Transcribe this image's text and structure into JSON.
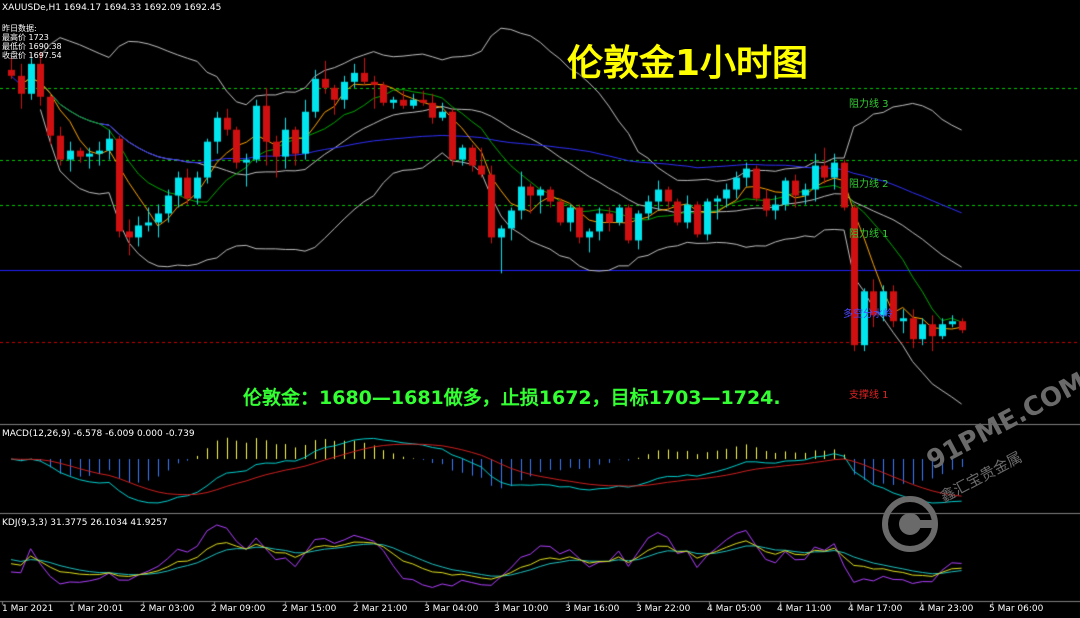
{
  "header": {
    "symbol_line": "XAUUSDe,H1  1694.17 1694.33 1692.09 1692.45",
    "prev_day_label": "昨日数据:",
    "prev_high": "最高价 1723",
    "prev_low": "最低价 1690.38",
    "prev_close": "收盘价 1697.54"
  },
  "title": "伦敦金1小时图",
  "strategy": "伦敦金：1680—1681做多，止损1672，目标1703—1724.",
  "levels": {
    "resistance3": "阻力线 3",
    "resistance2": "阻力线 2",
    "resistance1": "阻力线 1",
    "pivot": "多空分水岭",
    "support1": "支撑线 1"
  },
  "indicators": {
    "macd_label": "MACD(12,26,9) -6.578 -6.009 0.000 -0.739",
    "kdj_label": "KDJ(9,3,3) 31.3775 26.1034 41.9257"
  },
  "watermark": {
    "main": "91PME.COM",
    "sub": "鑫汇宝贵金属"
  },
  "colors": {
    "bull": "#00e5ee",
    "bear": "#d01010",
    "level_green": "#00c800",
    "level_red": "#c80000",
    "pivot_blue": "#2020ff",
    "ma_slow": "#3030ff",
    "ma_mid": "#00aa00",
    "ma_fast": "#ffa500",
    "band": "#c0c0c0"
  },
  "chart_data": {
    "type": "candlestick",
    "x_ticks": [
      "1 Mar 2021",
      "1 Mar 20:01",
      "2 Mar 03:00",
      "2 Mar 09:00",
      "2 Mar 15:00",
      "2 Mar 21:00",
      "3 Mar 04:00",
      "3 Mar 10:00",
      "3 Mar 16:00",
      "3 Mar 22:00",
      "4 Mar 05:00",
      "4 Mar 11:00",
      "4 Mar 17:00",
      "4 Mar 23:00",
      "5 Mar 06:00"
    ],
    "price_range": [
      1670,
      1740
    ],
    "horizontal_levels": {
      "resistance3": 1726,
      "resistance2": 1714,
      "resistance1": 1706.5,
      "pivot": 1695.5,
      "support1": 1683.5
    },
    "candles": [
      [
        1729,
        1731,
        1727.5,
        1728
      ],
      [
        1728,
        1730,
        1722.5,
        1725
      ],
      [
        1725,
        1731,
        1724,
        1730
      ],
      [
        1730,
        1732,
        1723,
        1724.5
      ],
      [
        1724.5,
        1725,
        1716.5,
        1718
      ],
      [
        1718,
        1719.5,
        1713,
        1714
      ],
      [
        1714,
        1717,
        1712,
        1715.5
      ],
      [
        1715.5,
        1716,
        1713.5,
        1714.5
      ],
      [
        1714.5,
        1716,
        1712.5,
        1715
      ],
      [
        1715,
        1717,
        1713,
        1715.5
      ],
      [
        1715.5,
        1719,
        1714,
        1717.5
      ],
      [
        1717.5,
        1718,
        1701,
        1702
      ],
      [
        1702,
        1704,
        1698,
        1701
      ],
      [
        1701,
        1704.5,
        1699.5,
        1703
      ],
      [
        1703,
        1706,
        1702,
        1703.5
      ],
      [
        1703.5,
        1706.5,
        1701,
        1705
      ],
      [
        1705,
        1709,
        1703.5,
        1708
      ],
      [
        1708,
        1712,
        1706,
        1711
      ],
      [
        1711,
        1712.5,
        1706.5,
        1707.5
      ],
      [
        1707.5,
        1712,
        1706.5,
        1711
      ],
      [
        1711,
        1717.5,
        1710,
        1717
      ],
      [
        1717,
        1722,
        1715,
        1721
      ],
      [
        1721,
        1722.5,
        1718,
        1719
      ],
      [
        1719,
        1719.5,
        1712.5,
        1713.5
      ],
      [
        1713.5,
        1715,
        1709.5,
        1714
      ],
      [
        1714,
        1724,
        1713.5,
        1723
      ],
      [
        1723,
        1726,
        1713,
        1717
      ],
      [
        1717,
        1718,
        1711,
        1714.5
      ],
      [
        1714.5,
        1721,
        1712.5,
        1719
      ],
      [
        1719,
        1719.5,
        1713,
        1715
      ],
      [
        1715,
        1724,
        1714,
        1722
      ],
      [
        1722,
        1729,
        1721,
        1727.5
      ],
      [
        1727.5,
        1730.5,
        1725,
        1726
      ],
      [
        1726,
        1726.5,
        1721.5,
        1724
      ],
      [
        1724,
        1728,
        1722.5,
        1727
      ],
      [
        1727,
        1730,
        1726,
        1728.5
      ],
      [
        1728.5,
        1731,
        1726.5,
        1727
      ],
      [
        1727,
        1728,
        1722.5,
        1726.5
      ],
      [
        1726.5,
        1727,
        1723,
        1723.5
      ],
      [
        1723.5,
        1724.5,
        1722.5,
        1724
      ],
      [
        1724,
        1725.5,
        1722.5,
        1723
      ],
      [
        1723,
        1725,
        1722.5,
        1724
      ],
      [
        1724,
        1725.5,
        1723,
        1723.5
      ],
      [
        1723.5,
        1725,
        1720,
        1721
      ],
      [
        1721,
        1723.5,
        1720.5,
        1722
      ],
      [
        1722,
        1722.5,
        1713,
        1714
      ],
      [
        1714,
        1716.5,
        1713,
        1716
      ],
      [
        1716,
        1716.5,
        1712,
        1713
      ],
      [
        1713,
        1716,
        1711,
        1711.5
      ],
      [
        1711.5,
        1713,
        1700,
        1701
      ],
      [
        1701,
        1703,
        1695,
        1702.5
      ],
      [
        1702.5,
        1706,
        1700.5,
        1705.5
      ],
      [
        1705.5,
        1712,
        1704,
        1709.5
      ],
      [
        1709.5,
        1710,
        1705,
        1708
      ],
      [
        1708,
        1709.5,
        1705,
        1709
      ],
      [
        1709,
        1709.5,
        1706,
        1707
      ],
      [
        1707,
        1707.5,
        1703,
        1703.5
      ],
      [
        1703.5,
        1706.5,
        1702,
        1706
      ],
      [
        1706,
        1706.5,
        1700,
        1701
      ],
      [
        1701,
        1702.5,
        1698.5,
        1702
      ],
      [
        1702,
        1706,
        1700.5,
        1705
      ],
      [
        1705,
        1706,
        1702,
        1703.5
      ],
      [
        1703.5,
        1706.5,
        1703,
        1706
      ],
      [
        1706,
        1706.5,
        1700,
        1700.5
      ],
      [
        1700.5,
        1705.5,
        1699,
        1705
      ],
      [
        1705,
        1708,
        1704,
        1707
      ],
      [
        1707,
        1710.5,
        1705.5,
        1709
      ],
      [
        1709,
        1709.5,
        1706,
        1707
      ],
      [
        1707,
        1707.5,
        1703,
        1703.5
      ],
      [
        1703.5,
        1708,
        1702.5,
        1706.5
      ],
      [
        1706.5,
        1707,
        1701,
        1701.5
      ],
      [
        1701.5,
        1707.5,
        1700.5,
        1707
      ],
      [
        1707,
        1708,
        1704,
        1707.5
      ],
      [
        1707.5,
        1710,
        1706,
        1709
      ],
      [
        1709,
        1712,
        1707.5,
        1711
      ],
      [
        1711,
        1713.5,
        1709.5,
        1712.5
      ],
      [
        1712.5,
        1713,
        1707,
        1707.5
      ],
      [
        1707.5,
        1709,
        1704.5,
        1705.5
      ],
      [
        1705.5,
        1708,
        1704,
        1706.5
      ],
      [
        1706.5,
        1711,
        1705.5,
        1710.5
      ],
      [
        1710.5,
        1711.5,
        1706,
        1708
      ],
      [
        1708,
        1710,
        1706.5,
        1709
      ],
      [
        1709,
        1715,
        1707,
        1713
      ],
      [
        1713,
        1716,
        1710,
        1711
      ],
      [
        1711,
        1715,
        1709,
        1713.5
      ],
      [
        1713.5,
        1714,
        1705.5,
        1706
      ],
      [
        1706,
        1706.5,
        1682,
        1683
      ],
      [
        1683,
        1692.5,
        1682,
        1692
      ],
      [
        1692,
        1694,
        1686,
        1688
      ],
      [
        1688,
        1693,
        1687,
        1692
      ],
      [
        1692,
        1693,
        1686,
        1687
      ],
      [
        1687,
        1689,
        1685,
        1687.5
      ],
      [
        1687.5,
        1689,
        1682.5,
        1684
      ],
      [
        1684,
        1687.5,
        1683,
        1686.5
      ],
      [
        1686.5,
        1688,
        1682,
        1684.5
      ],
      [
        1684.5,
        1687.5,
        1684,
        1686.5
      ],
      [
        1686.5,
        1688,
        1686,
        1687
      ],
      [
        1687,
        1687.5,
        1685,
        1685.5
      ]
    ]
  }
}
